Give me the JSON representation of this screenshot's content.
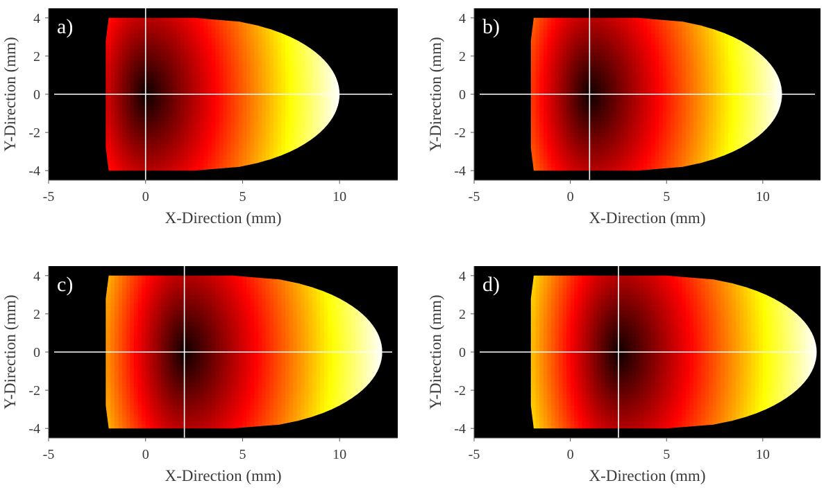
{
  "chart_data": [
    {
      "type": "heatmap",
      "panel_label": "a)",
      "xlabel": "X-Direction (mm)",
      "ylabel": "Y-Direction (mm)",
      "xlim": [
        -5,
        13
      ],
      "ylim": [
        -4.5,
        4.5
      ],
      "xticks": [
        -5,
        0,
        5,
        10
      ],
      "yticks": [
        -4,
        -2,
        0,
        2,
        4
      ],
      "background": "#000000",
      "colormap": "hot",
      "crosshair": {
        "x": 0,
        "y": 0
      },
      "shape": {
        "x_left": -2,
        "x_right": 10,
        "x_flat_end": 2.5,
        "half_height": 4
      }
    },
    {
      "type": "heatmap",
      "panel_label": "b)",
      "xlabel": "X-Direction (mm)",
      "ylabel": "Y-Direction (mm)",
      "xlim": [
        -5,
        13
      ],
      "ylim": [
        -4.5,
        4.5
      ],
      "xticks": [
        -5,
        0,
        5,
        10
      ],
      "yticks": [
        -4,
        -2,
        0,
        2,
        4
      ],
      "background": "#000000",
      "colormap": "hot",
      "crosshair": {
        "x": 1,
        "y": 0
      },
      "shape": {
        "x_left": -2,
        "x_right": 11,
        "x_flat_end": 3.5,
        "half_height": 4
      }
    },
    {
      "type": "heatmap",
      "panel_label": "c)",
      "xlabel": "X-Direction (mm)",
      "ylabel": "Y-Direction (mm)",
      "xlim": [
        -5,
        13
      ],
      "ylim": [
        -4.5,
        4.5
      ],
      "xticks": [
        -5,
        0,
        5,
        10
      ],
      "yticks": [
        -4,
        -2,
        0,
        2,
        4
      ],
      "background": "#000000",
      "colormap": "hot",
      "crosshair": {
        "x": 2,
        "y": 0
      },
      "shape": {
        "x_left": -2,
        "x_right": 12.2,
        "x_flat_end": 4.5,
        "half_height": 4
      }
    },
    {
      "type": "heatmap",
      "panel_label": "d)",
      "xlabel": "X-Direction (mm)",
      "ylabel": "Y-Direction (mm)",
      "xlim": [
        -5,
        13
      ],
      "ylim": [
        -4.5,
        4.5
      ],
      "xticks": [
        -5,
        0,
        5,
        10
      ],
      "yticks": [
        -4,
        -2,
        0,
        2,
        4
      ],
      "background": "#000000",
      "colormap": "hot",
      "crosshair": {
        "x": 2.5,
        "y": 0
      },
      "shape": {
        "x_left": -2,
        "x_right": 12.8,
        "x_flat_end": 5,
        "half_height": 4
      }
    }
  ]
}
